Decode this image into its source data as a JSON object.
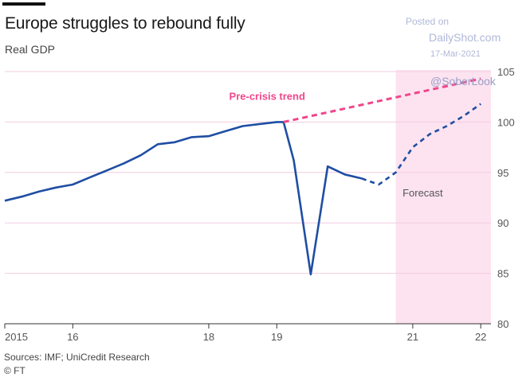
{
  "header": {
    "title": "Europe struggles to rebound fully",
    "subtitle": "Real GDP"
  },
  "watermark": {
    "posted_on": "Posted on",
    "site": "DailyShot.com",
    "date": "17-Mar-2021",
    "handle": "@SoberLook"
  },
  "footer": {
    "source": "Sources: IMF; UniCredit Research",
    "credit": "© FT"
  },
  "colors": {
    "actual": "#1f4ea3",
    "trend": "#f0468c",
    "shade": "#fde3f0",
    "grid": "#f2cce0",
    "axis": "#333333"
  },
  "chart_data": {
    "type": "line",
    "title": "Europe struggles to rebound fully",
    "subtitle": "Real GDP",
    "ylabel": "",
    "xlabel": "",
    "ylim": [
      80,
      105
    ],
    "xlim": [
      2015,
      2022.15
    ],
    "y_ticks": [
      80,
      85,
      90,
      95,
      100,
      105
    ],
    "x_ticks": [
      {
        "value": 2015,
        "label": "2015"
      },
      {
        "value": 2016,
        "label": "16"
      },
      {
        "value": 2018,
        "label": "18"
      },
      {
        "value": 2019,
        "label": "19"
      },
      {
        "value": 2021,
        "label": "21"
      },
      {
        "value": 2022,
        "label": "22"
      }
    ],
    "grid": "horizontal",
    "y_axis_side": "right",
    "forecast_region": {
      "start": 2020.75,
      "end": 2022.15,
      "label": "Forecast"
    },
    "series": [
      {
        "style": "solid",
        "points": [
          [
            2015.0,
            92.2
          ],
          [
            2015.25,
            92.6
          ],
          [
            2015.5,
            93.1
          ],
          [
            2015.75,
            93.5
          ],
          [
            2016.0,
            93.8
          ],
          [
            2016.25,
            94.5
          ],
          [
            2016.5,
            95.2
          ],
          [
            2016.75,
            95.9
          ],
          [
            2017.0,
            96.7
          ],
          [
            2017.25,
            97.8
          ],
          [
            2017.5,
            98.0
          ],
          [
            2017.75,
            98.5
          ],
          [
            2018.0,
            98.6
          ],
          [
            2018.25,
            99.1
          ],
          [
            2018.5,
            99.6
          ],
          [
            2018.75,
            99.8
          ],
          [
            2019.0,
            100.0
          ],
          [
            2019.1,
            100.0
          ],
          [
            2019.25,
            96.2
          ],
          [
            2019.5,
            84.9
          ],
          [
            2019.75,
            95.6
          ],
          [
            2020.0,
            94.8
          ],
          [
            2020.25,
            94.4
          ]
        ]
      },
      {
        "style": "dashed",
        "points": [
          [
            2020.25,
            94.4
          ],
          [
            2020.5,
            93.8
          ],
          [
            2020.75,
            95.0
          ],
          [
            2021.0,
            97.5
          ],
          [
            2021.25,
            98.8
          ],
          [
            2021.5,
            99.6
          ],
          [
            2021.75,
            100.6
          ],
          [
            2022.0,
            101.8
          ]
        ]
      },
      {
        "name": "Pre-crisis trend",
        "style": "dashed",
        "points": [
          [
            2019.1,
            100.0
          ],
          [
            2022.0,
            104.3
          ]
        ]
      }
    ],
    "annotations": [
      {
        "text": "Pre-crisis trend",
        "x": 2018.3,
        "y": 102.2,
        "color": "trend"
      },
      {
        "text": "Forecast",
        "x": 2020.85,
        "y": 92.6,
        "color": "text"
      }
    ]
  }
}
